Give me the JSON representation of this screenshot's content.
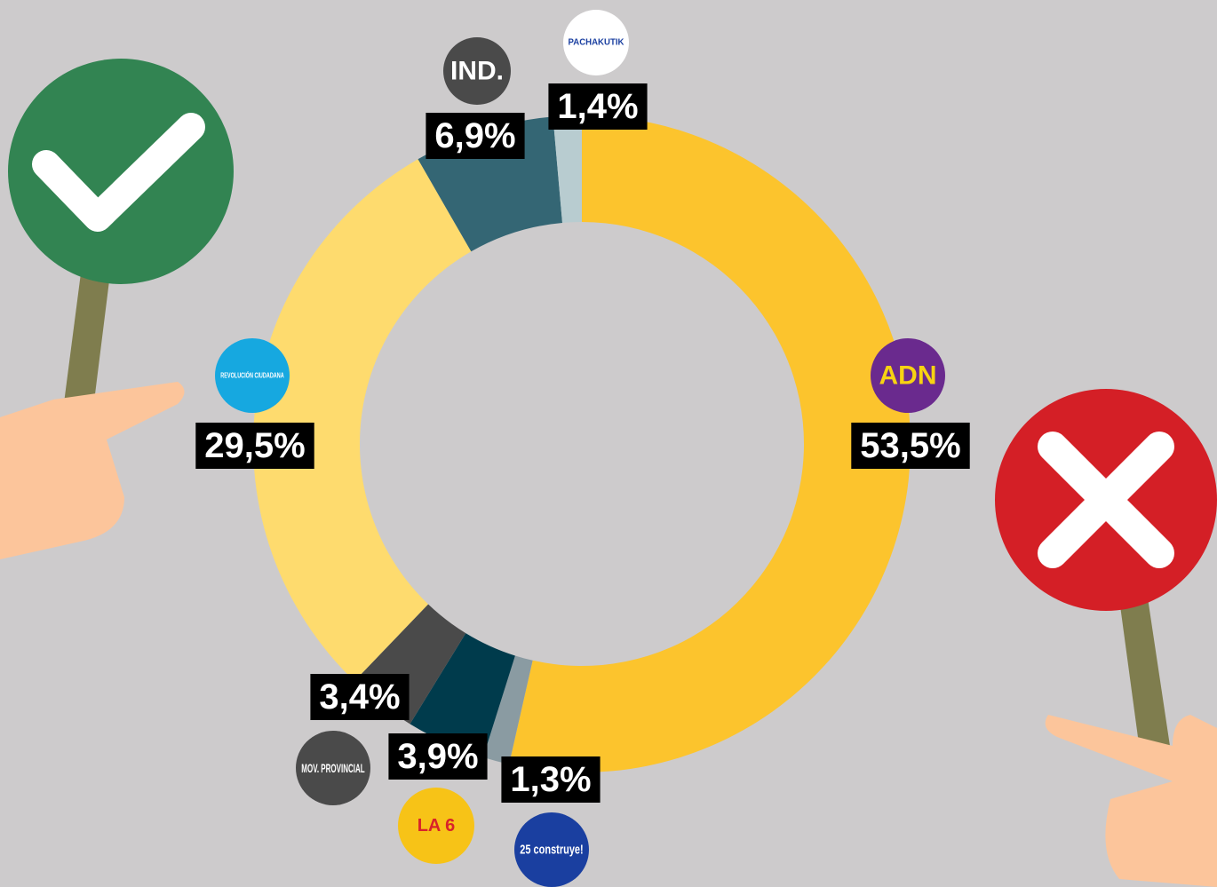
{
  "chart_data": {
    "type": "donut",
    "categories": [
      "ADN",
      "25 construye!",
      "LA 6",
      "MOV. PROVINCIAL",
      "REVOLUCIÓN CIUDADANA",
      "IND.",
      "PACHAKUTIK"
    ],
    "values": [
      53.5,
      1.3,
      3.9,
      3.4,
      29.5,
      6.9,
      1.4
    ],
    "value_labels": [
      "53,5%",
      "1,3%",
      "3,9%",
      "3,4%",
      "29,5%",
      "6,9%",
      "1,4%"
    ],
    "colors": [
      "#fcc42d",
      "#8a9ba2",
      "#003b4c",
      "#4a4a4a",
      "#fedb6e",
      "#346674",
      "#b8ccd0"
    ]
  }
}
